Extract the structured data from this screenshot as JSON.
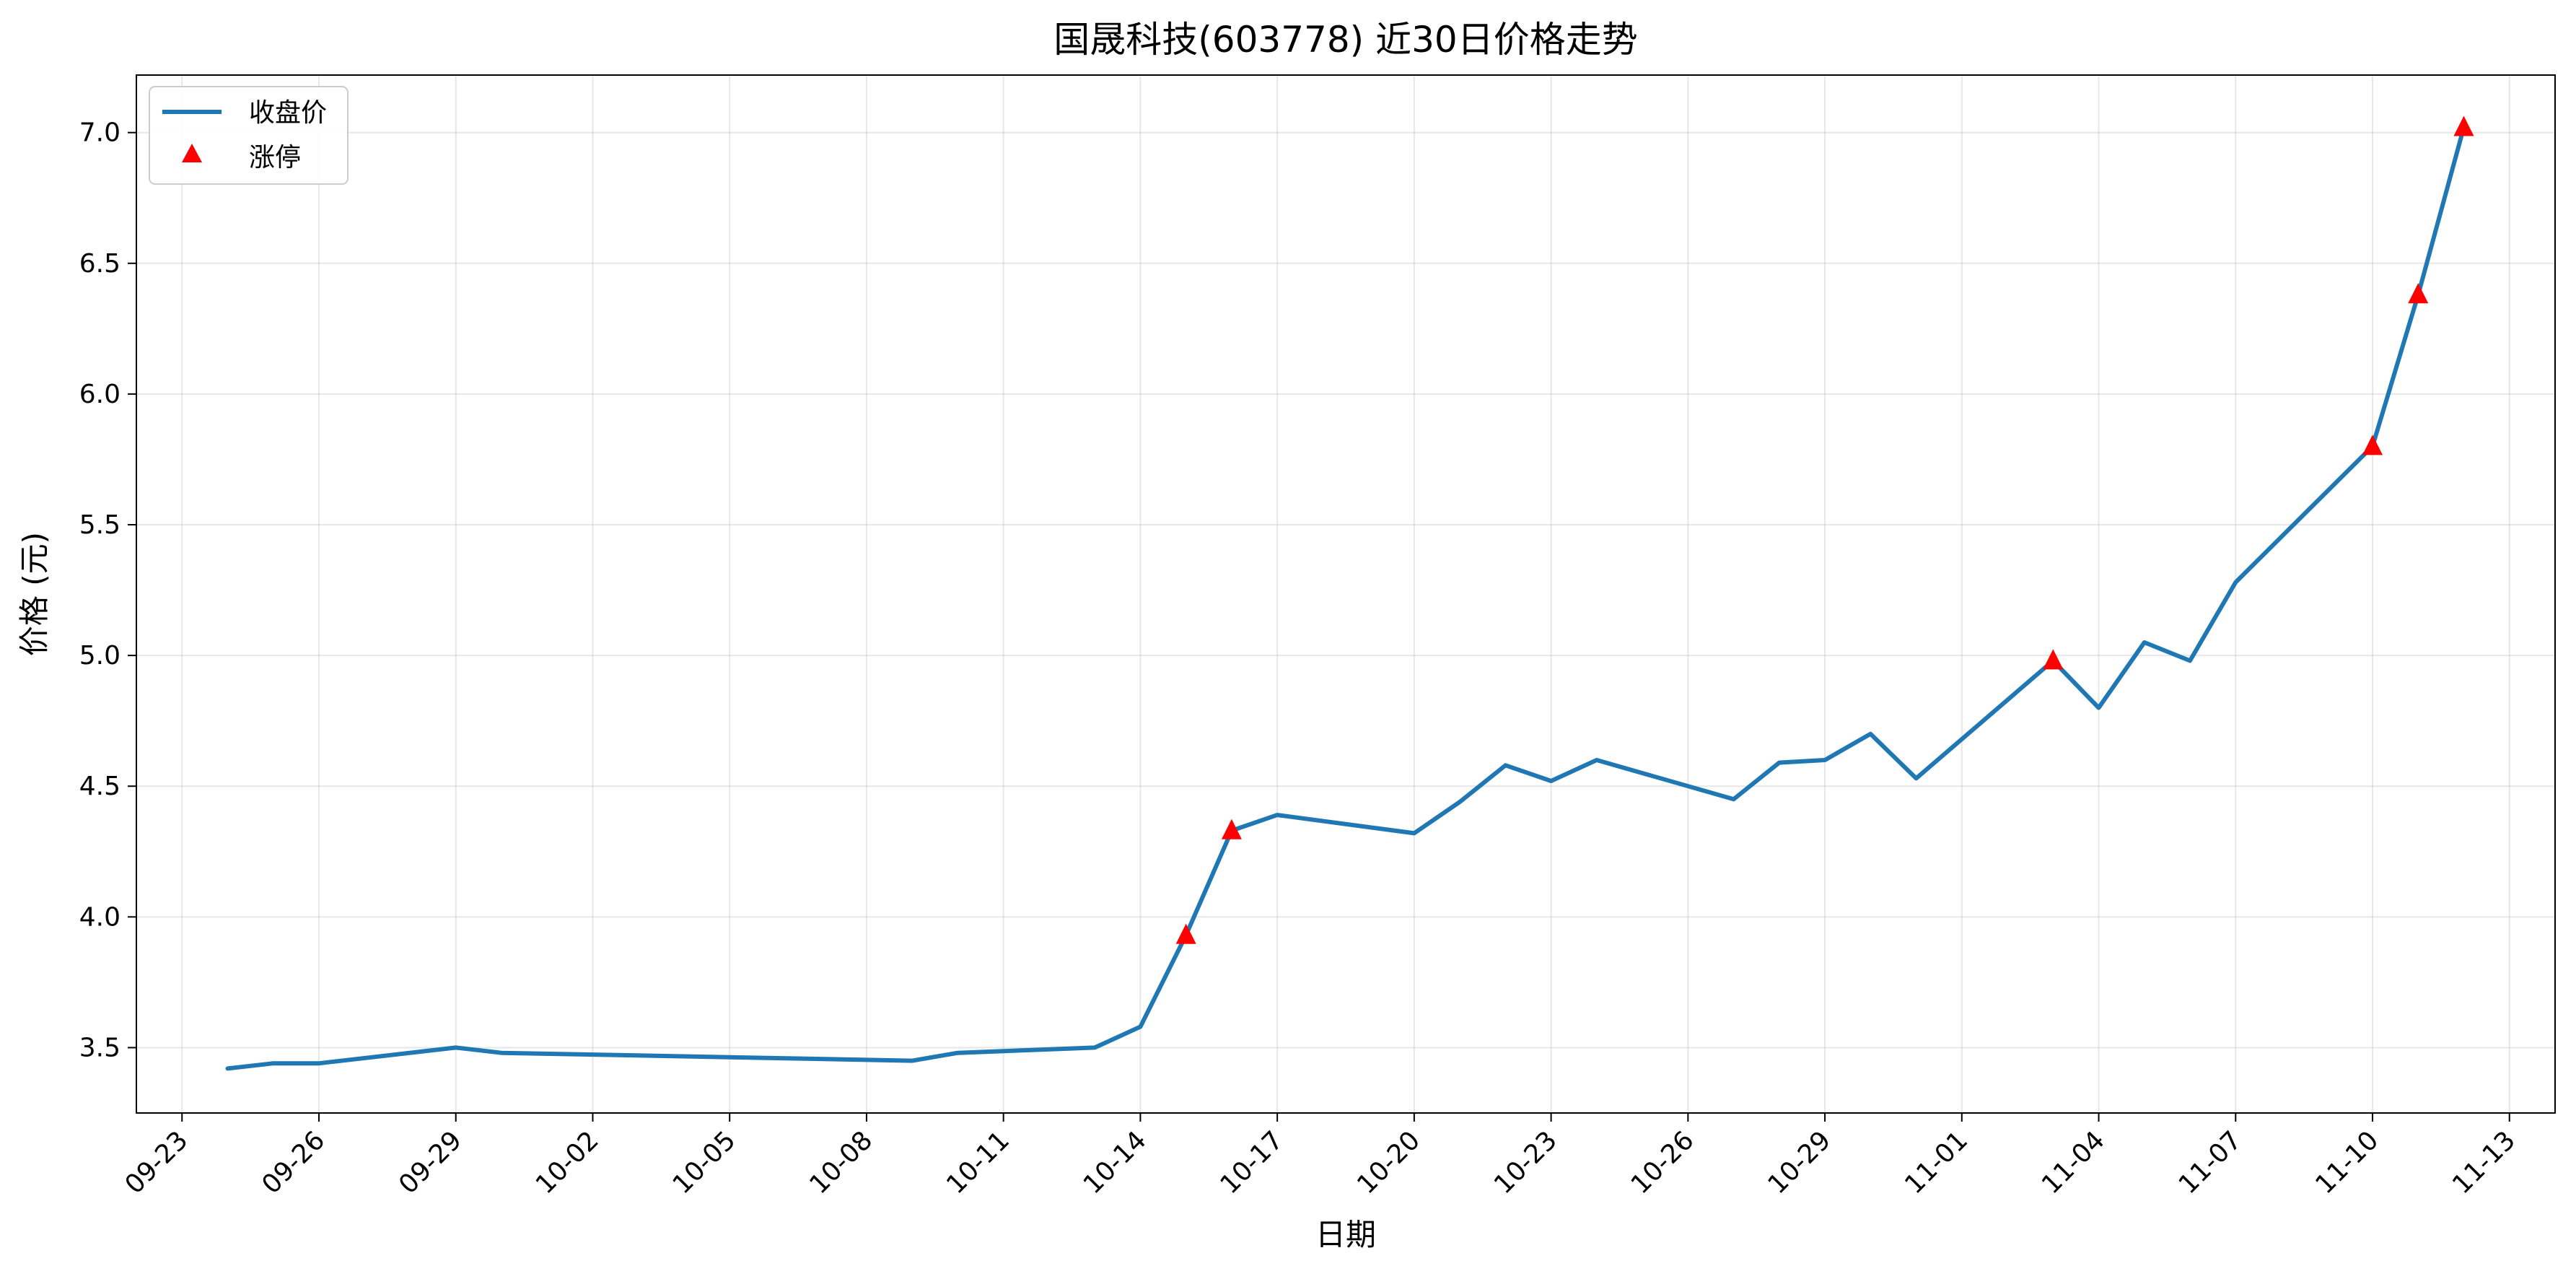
{
  "chart_data": {
    "type": "line",
    "title": "国晟科技(603778) 近30日价格走势",
    "xlabel": "日期",
    "ylabel": "价格 (元)",
    "year": 2024,
    "xlim": [
      "2024-09-22",
      "2024-11-14"
    ],
    "ylim": [
      3.25,
      7.22
    ],
    "x_ticks": [
      "09-23",
      "09-26",
      "09-29",
      "10-02",
      "10-05",
      "10-08",
      "10-11",
      "10-14",
      "10-17",
      "10-20",
      "10-23",
      "10-26",
      "10-29",
      "11-01",
      "11-04",
      "11-07",
      "11-10",
      "11-13"
    ],
    "y_ticks": [
      3.5,
      4.0,
      4.5,
      5.0,
      5.5,
      6.0,
      6.5,
      7.0
    ],
    "y_tick_labels": [
      "3.5",
      "4.0",
      "4.5",
      "5.0",
      "5.5",
      "6.0",
      "6.5",
      "7.0"
    ],
    "grid": true,
    "legend_position": "top-left",
    "series": [
      {
        "name": "收盘价",
        "color": "#1f77b4",
        "points": [
          [
            "09-24",
            3.42
          ],
          [
            "09-25",
            3.44
          ],
          [
            "09-26",
            3.44
          ],
          [
            "09-29",
            3.5
          ],
          [
            "09-30",
            3.48
          ],
          [
            "10-09",
            3.45
          ],
          [
            "10-10",
            3.48
          ],
          [
            "10-13",
            3.5
          ],
          [
            "10-14",
            3.58
          ],
          [
            "10-15",
            3.93
          ],
          [
            "10-16",
            4.33
          ],
          [
            "10-17",
            4.39
          ],
          [
            "10-20",
            4.32
          ],
          [
            "10-21",
            4.44
          ],
          [
            "10-22",
            4.58
          ],
          [
            "10-23",
            4.52
          ],
          [
            "10-24",
            4.6
          ],
          [
            "10-27",
            4.45
          ],
          [
            "10-28",
            4.59
          ],
          [
            "10-29",
            4.6
          ],
          [
            "10-30",
            4.7
          ],
          [
            "10-31",
            4.53
          ],
          [
            "11-03",
            4.98
          ],
          [
            "11-04",
            4.8
          ],
          [
            "11-05",
            5.05
          ],
          [
            "11-06",
            4.98
          ],
          [
            "11-07",
            5.28
          ],
          [
            "11-10",
            5.8
          ],
          [
            "11-11",
            6.38
          ],
          [
            "11-12",
            7.02
          ]
        ]
      },
      {
        "name": "涨停",
        "color": "#ff0000",
        "marker": "triangle",
        "points": [
          [
            "10-15",
            3.93
          ],
          [
            "10-16",
            4.33
          ],
          [
            "11-03",
            4.98
          ],
          [
            "11-10",
            5.8
          ],
          [
            "11-11",
            6.38
          ],
          [
            "11-12",
            7.02
          ]
        ]
      }
    ]
  }
}
